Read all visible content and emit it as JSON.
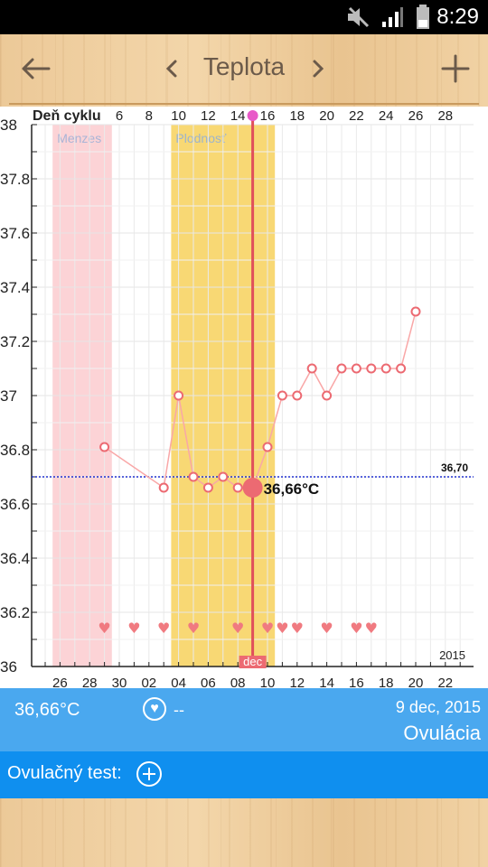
{
  "status_bar": {
    "time": "8:29",
    "icons": [
      "mute-icon",
      "signal-icon",
      "battery-icon"
    ]
  },
  "header": {
    "title": "Teplota"
  },
  "chart_data": {
    "type": "line",
    "title": "",
    "top_axis_label": "Deň cyklu",
    "cycle_day_ticks": [
      "6",
      "8",
      "10",
      "12",
      "14",
      "16",
      "18",
      "20",
      "22",
      "24",
      "26",
      "28"
    ],
    "date_ticks": [
      "26",
      "28",
      "30",
      "02",
      "04",
      "06",
      "08",
      "10",
      "12",
      "14",
      "16",
      "18",
      "20",
      "22"
    ],
    "y_ticks": [
      "38",
      "37.8",
      "37.6",
      "37.4",
      "37.2",
      "37",
      "36.8",
      "36.6",
      "36.4",
      "36.2",
      "36"
    ],
    "ylim": [
      36,
      38
    ],
    "x_range": [
      "2015-11-25",
      "2015-12-23"
    ],
    "grid": true,
    "bands": [
      {
        "label": "Menzes",
        "from": "2015-11-26",
        "to": "2015-11-29",
        "color": "#fcd3d6"
      },
      {
        "label": "Plodnosť",
        "from": "2015-12-04",
        "to": "2015-12-10",
        "color": "#f8d874"
      }
    ],
    "series": [
      {
        "points": [
          {
            "x": "2015-11-29",
            "y": 36.81
          },
          {
            "x": "2015-12-03",
            "y": 36.66
          },
          {
            "x": "2015-12-04",
            "y": 37.0
          },
          {
            "x": "2015-12-05",
            "y": 36.7
          },
          {
            "x": "2015-12-06",
            "y": 36.66
          },
          {
            "x": "2015-12-07",
            "y": 36.7
          },
          {
            "x": "2015-12-08",
            "y": 36.66
          },
          {
            "x": "2015-12-09",
            "y": 36.66
          },
          {
            "x": "2015-12-10",
            "y": 36.81
          },
          {
            "x": "2015-12-11",
            "y": 37.0
          },
          {
            "x": "2015-12-12",
            "y": 37.0
          },
          {
            "x": "2015-12-13",
            "y": 37.1
          },
          {
            "x": "2015-12-14",
            "y": 37.0
          },
          {
            "x": "2015-12-15",
            "y": 37.1
          },
          {
            "x": "2015-12-16",
            "y": 37.1
          },
          {
            "x": "2015-12-17",
            "y": 37.1
          },
          {
            "x": "2015-12-18",
            "y": 37.1
          },
          {
            "x": "2015-12-19",
            "y": 37.1
          },
          {
            "x": "2015-12-20",
            "y": 37.31
          }
        ]
      }
    ],
    "baseline": {
      "value": 36.7,
      "label": "36,70"
    },
    "selected": {
      "x": "2015-12-09",
      "y": 36.66,
      "label": "36,66°C",
      "month_label": "dec"
    },
    "ovulation_day": "2015-12-09",
    "heart_days": [
      "2015-11-29",
      "2015-12-01",
      "2015-12-03",
      "2015-12-05",
      "2015-12-08",
      "2015-12-10",
      "2015-12-11",
      "2015-12-12",
      "2015-12-14",
      "2015-12-16",
      "2015-12-17"
    ],
    "year_label": "2015",
    "colors": {
      "line": "#f9a7a7",
      "marker": "#ec6a72",
      "baseline": "#2030d0",
      "selected_line": "#e0505a"
    }
  },
  "info": {
    "temperature": "36,66°C",
    "heart_value": "--",
    "date": "9 dec, 2015",
    "phase": "Ovulácia"
  },
  "test": {
    "label": "Ovulačný test:"
  }
}
